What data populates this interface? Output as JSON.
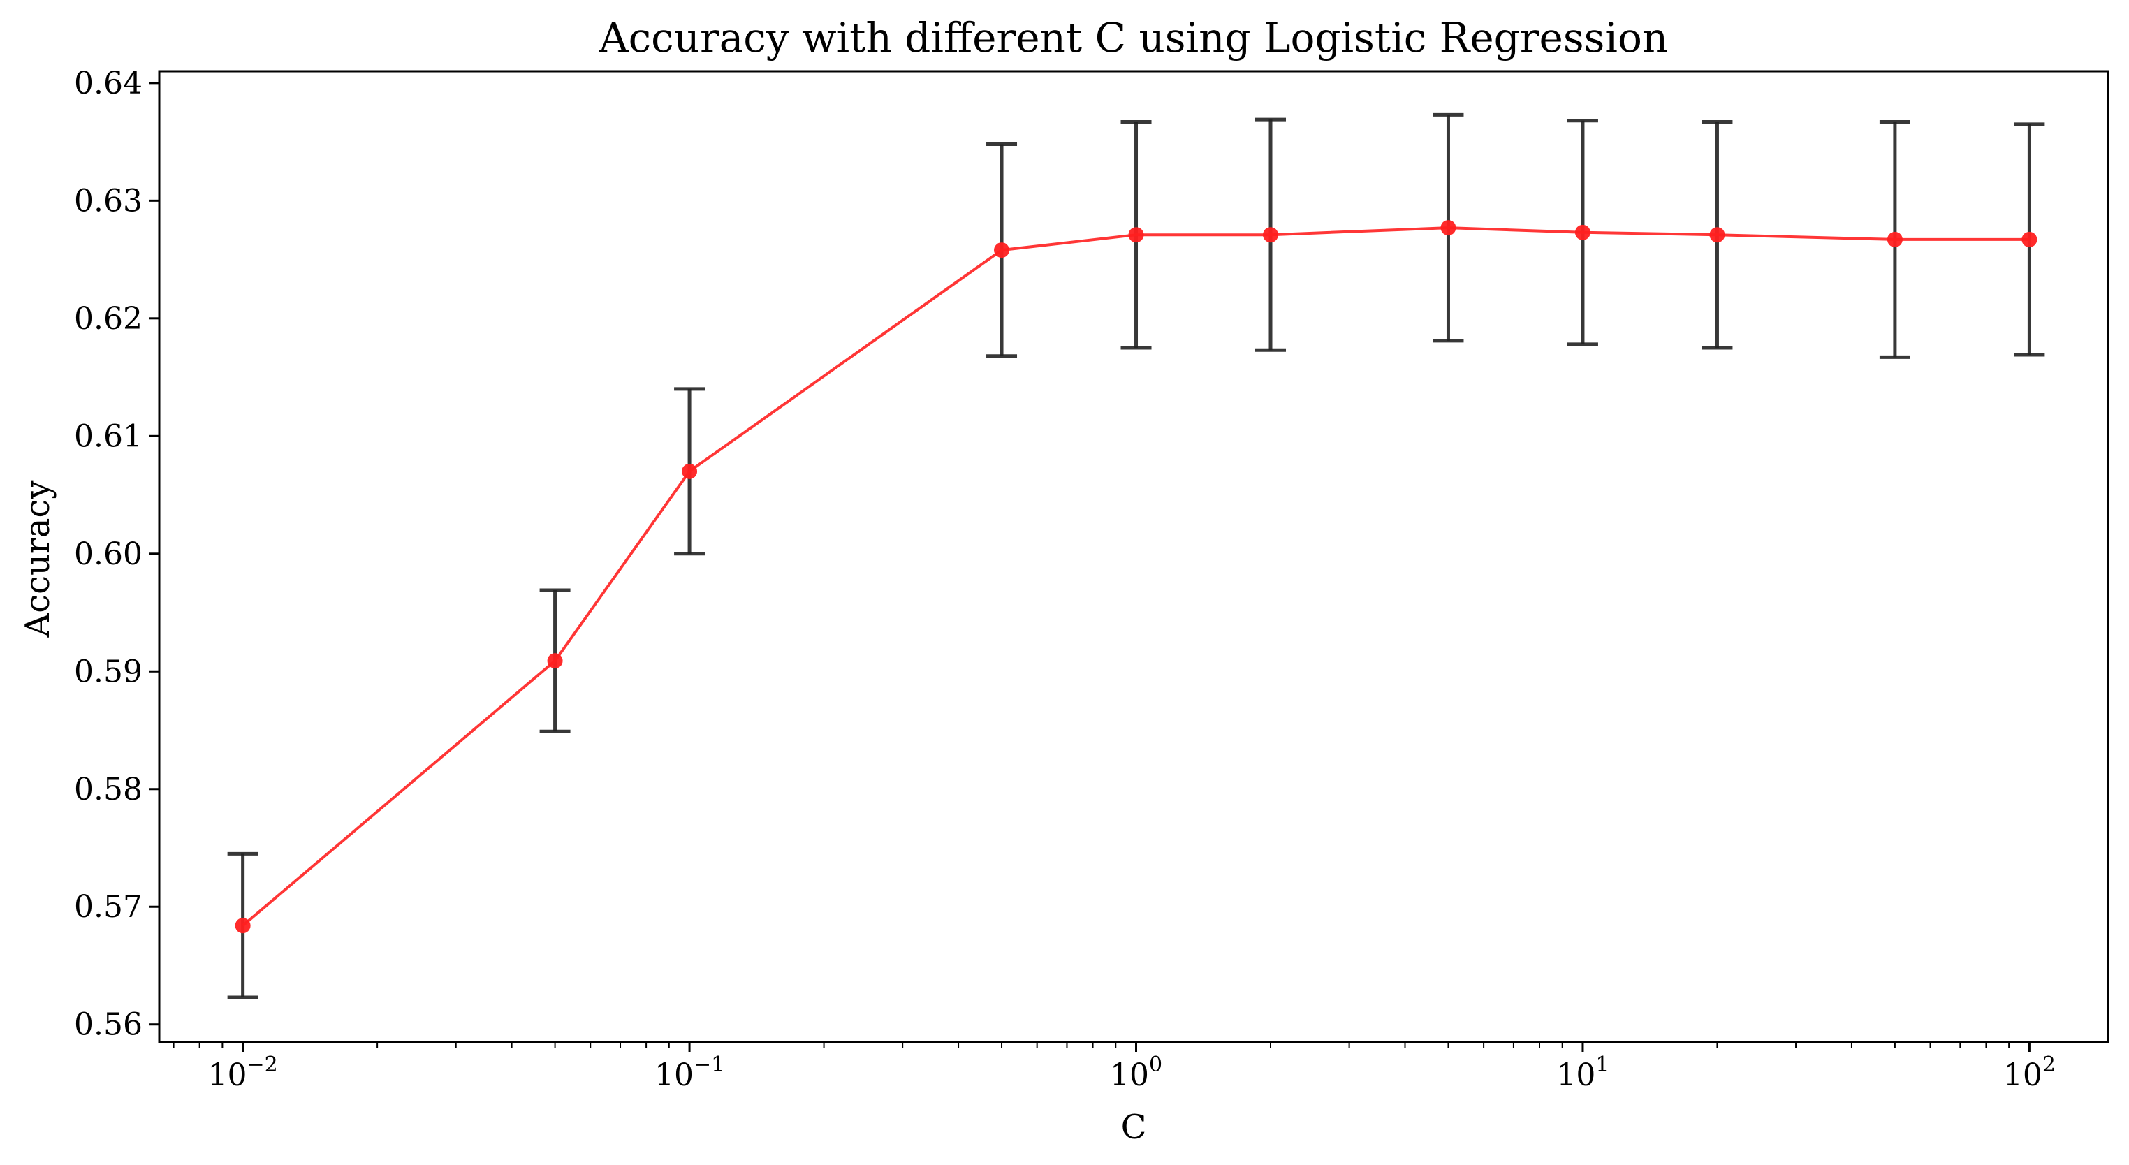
{
  "chart_data": {
    "type": "line",
    "title": "Accuracy with different C using Logistic Regression",
    "xlabel": "C",
    "ylabel": "Accuracy",
    "x_scale": "log",
    "xlim": [
      0.0065,
      150
    ],
    "ylim": [
      0.5585,
      0.641
    ],
    "grid": false,
    "legend": "none",
    "x_ticks": [
      {
        "value": 0.01,
        "base": "10",
        "exp": "−2"
      },
      {
        "value": 0.1,
        "base": "10",
        "exp": "−1"
      },
      {
        "value": 1,
        "base": "10",
        "exp": "0"
      },
      {
        "value": 10,
        "base": "10",
        "exp": "1"
      },
      {
        "value": 100,
        "base": "10",
        "exp": "2"
      }
    ],
    "y_ticks": [
      {
        "value": 0.56,
        "label": "0.56"
      },
      {
        "value": 0.57,
        "label": "0.57"
      },
      {
        "value": 0.58,
        "label": "0.58"
      },
      {
        "value": 0.59,
        "label": "0.59"
      },
      {
        "value": 0.6,
        "label": "0.60"
      },
      {
        "value": 0.61,
        "label": "0.61"
      },
      {
        "value": 0.62,
        "label": "0.62"
      },
      {
        "value": 0.63,
        "label": "0.63"
      },
      {
        "value": 0.64,
        "label": "0.64"
      }
    ],
    "series": [
      {
        "color": "#ff2020",
        "errorbar_color": "#222222",
        "points": [
          {
            "x": 0.01,
            "y": 0.5684,
            "err": 0.0061
          },
          {
            "x": 0.05,
            "y": 0.5909,
            "err": 0.006
          },
          {
            "x": 0.1,
            "y": 0.607,
            "err": 0.007
          },
          {
            "x": 0.5,
            "y": 0.6258,
            "err": 0.009
          },
          {
            "x": 1,
            "y": 0.6271,
            "err": 0.0096
          },
          {
            "x": 2,
            "y": 0.6271,
            "err": 0.0098
          },
          {
            "x": 5,
            "y": 0.6277,
            "err": 0.0096
          },
          {
            "x": 10,
            "y": 0.6273,
            "err": 0.0095
          },
          {
            "x": 20,
            "y": 0.6271,
            "err": 0.0096
          },
          {
            "x": 50,
            "y": 0.6267,
            "err": 0.01
          },
          {
            "x": 100,
            "y": 0.6267,
            "err": 0.0098
          }
        ]
      }
    ]
  }
}
